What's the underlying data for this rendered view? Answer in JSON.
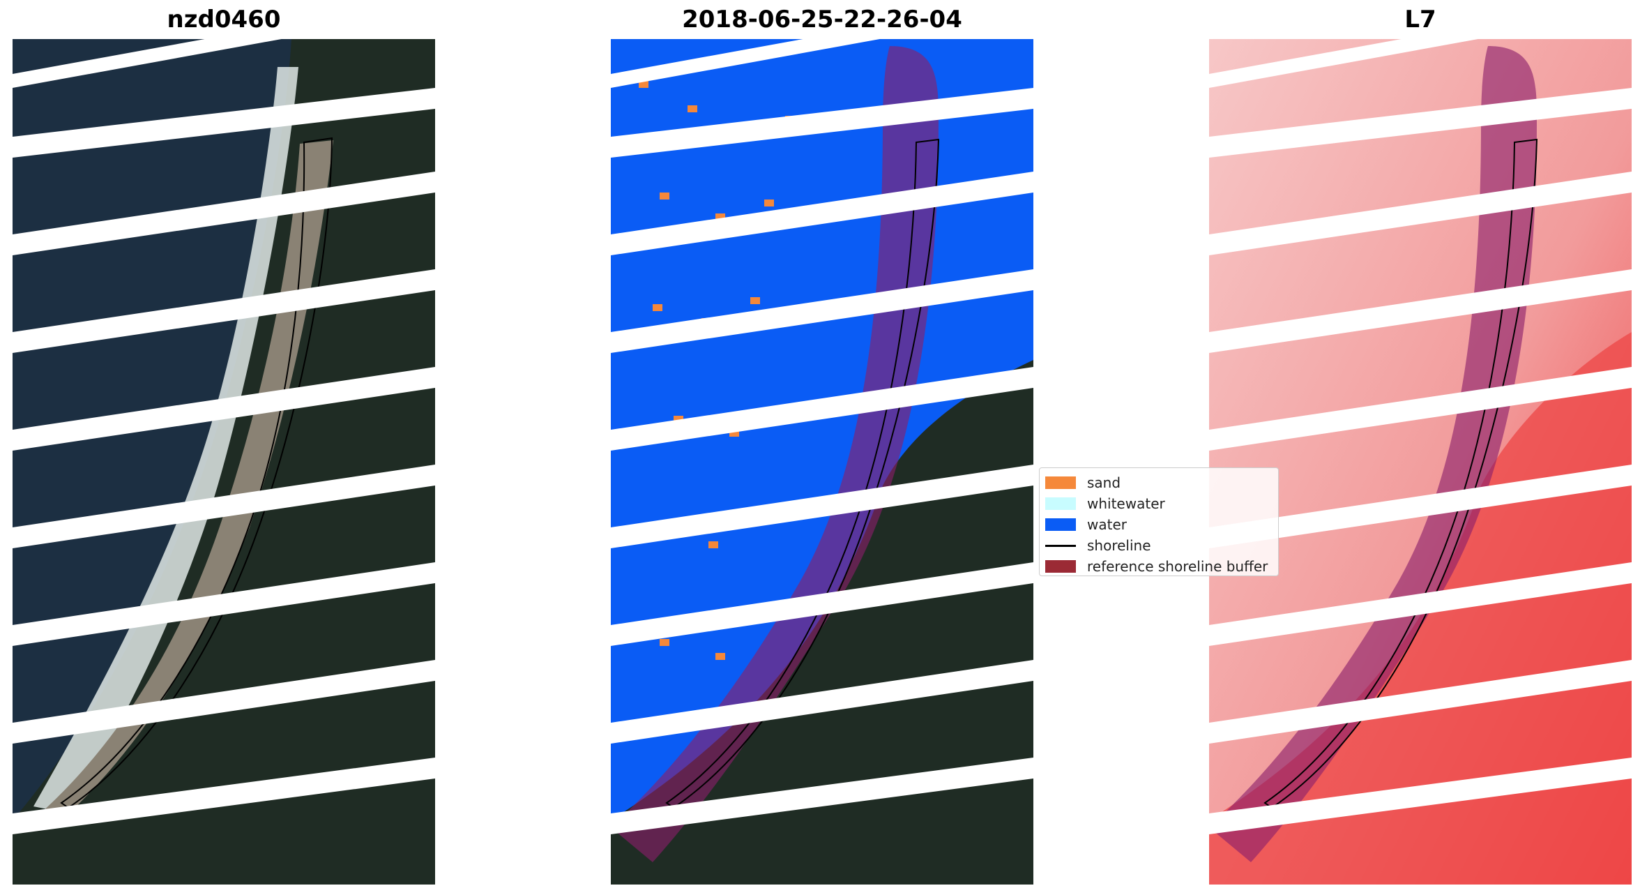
{
  "titles": {
    "left": "nzd0460",
    "middle": "2018-06-25-22-26-04",
    "right": "L7"
  },
  "legend": {
    "items": [
      {
        "label": "sand",
        "color": "#f5883a",
        "kind": "patch"
      },
      {
        "label": "whitewater",
        "color": "#c8fcff",
        "kind": "patch"
      },
      {
        "label": "water",
        "color": "#0a5cf5",
        "kind": "patch"
      },
      {
        "label": "shoreline",
        "color": "#000000",
        "kind": "line"
      },
      {
        "label": "reference shoreline buffer",
        "color": "#9b2a35",
        "kind": "patch"
      }
    ]
  },
  "colors": {
    "ocean": "#1c2f42",
    "forest": "#1f2c24",
    "beach": "#8a8274",
    "surf": "#e3ece9",
    "water_class": "#0a5cf5",
    "buffer_overlay": "#8a1e6a",
    "index_light": "#f7c7c7",
    "index_dark": "#ee3a3a"
  }
}
